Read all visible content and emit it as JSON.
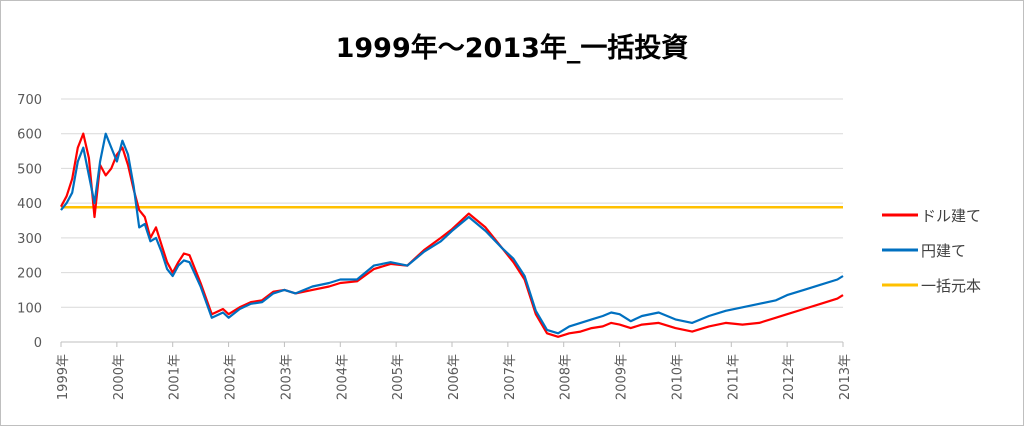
{
  "chart_data": {
    "type": "line",
    "title": "1999年～2013年_一括投資",
    "ylim": [
      0,
      700
    ],
    "yticks": [
      0,
      100,
      200,
      300,
      400,
      500,
      600,
      700
    ],
    "xlim": [
      1999,
      2013
    ],
    "xticks": [
      {
        "x": 1999,
        "label": "1999年"
      },
      {
        "x": 2000,
        "label": "2000年"
      },
      {
        "x": 2001,
        "label": "2001年"
      },
      {
        "x": 2002,
        "label": "2002年"
      },
      {
        "x": 2003,
        "label": "2003年"
      },
      {
        "x": 2004,
        "label": "2004年"
      },
      {
        "x": 2005,
        "label": "2005年"
      },
      {
        "x": 2006,
        "label": "2006年"
      },
      {
        "x": 2007,
        "label": "2007年"
      },
      {
        "x": 2008,
        "label": "2008年"
      },
      {
        "x": 2009,
        "label": "2009年"
      },
      {
        "x": 2010,
        "label": "2010年"
      },
      {
        "x": 2011,
        "label": "2011年"
      },
      {
        "x": 2012,
        "label": "2012年"
      },
      {
        "x": 2013,
        "label": "2013年"
      }
    ],
    "grid": true,
    "legend_position": "right",
    "series": [
      {
        "name": "ドル建て",
        "color": "#ff0000",
        "x": [
          1999.0,
          1999.1,
          1999.2,
          1999.3,
          1999.4,
          1999.5,
          1999.6,
          1999.7,
          1999.8,
          1999.9,
          2000.0,
          2000.1,
          2000.2,
          2000.3,
          2000.4,
          2000.5,
          2000.6,
          2000.7,
          2000.8,
          2000.9,
          2001.0,
          2001.1,
          2001.2,
          2001.3,
          2001.5,
          2001.7,
          2001.9,
          2002.0,
          2002.2,
          2002.4,
          2002.6,
          2002.8,
          2003.0,
          2003.2,
          2003.5,
          2003.8,
          2004.0,
          2004.3,
          2004.6,
          2004.9,
          2005.2,
          2005.5,
          2005.8,
          2006.0,
          2006.3,
          2006.6,
          2006.9,
          2007.1,
          2007.3,
          2007.5,
          2007.7,
          2007.9,
          2008.1,
          2008.3,
          2008.5,
          2008.7,
          2008.85,
          2009.0,
          2009.2,
          2009.4,
          2009.7,
          2010.0,
          2010.3,
          2010.6,
          2010.9,
          2011.2,
          2011.5,
          2011.8,
          2012.0,
          2012.3,
          2012.6,
          2012.9,
          2013.0
        ],
        "y": [
          390,
          420,
          470,
          560,
          600,
          530,
          360,
          510,
          480,
          500,
          540,
          560,
          510,
          440,
          380,
          360,
          300,
          330,
          280,
          230,
          200,
          230,
          255,
          250,
          170,
          80,
          95,
          80,
          100,
          115,
          120,
          145,
          150,
          140,
          150,
          160,
          170,
          175,
          210,
          225,
          220,
          265,
          300,
          325,
          370,
          330,
          270,
          230,
          180,
          80,
          25,
          15,
          25,
          30,
          40,
          45,
          55,
          50,
          40,
          50,
          55,
          40,
          30,
          45,
          55,
          50,
          55,
          70,
          80,
          95,
          110,
          125,
          135
        ]
      },
      {
        "name": "円建て",
        "color": "#0070c0",
        "x": [
          1999.0,
          1999.1,
          1999.2,
          1999.3,
          1999.4,
          1999.5,
          1999.6,
          1999.7,
          1999.8,
          1999.9,
          2000.0,
          2000.1,
          2000.2,
          2000.3,
          2000.4,
          2000.5,
          2000.6,
          2000.7,
          2000.8,
          2000.9,
          2001.0,
          2001.1,
          2001.2,
          2001.3,
          2001.5,
          2001.7,
          2001.9,
          2002.0,
          2002.2,
          2002.4,
          2002.6,
          2002.8,
          2003.0,
          2003.2,
          2003.5,
          2003.8,
          2004.0,
          2004.3,
          2004.6,
          2004.9,
          2005.2,
          2005.5,
          2005.8,
          2006.0,
          2006.3,
          2006.6,
          2006.9,
          2007.1,
          2007.3,
          2007.5,
          2007.7,
          2007.9,
          2008.1,
          2008.3,
          2008.5,
          2008.7,
          2008.85,
          2009.0,
          2009.2,
          2009.4,
          2009.7,
          2010.0,
          2010.3,
          2010.6,
          2010.9,
          2011.2,
          2011.5,
          2011.8,
          2012.0,
          2012.3,
          2012.6,
          2012.9,
          2013.0
        ],
        "y": [
          380,
          400,
          430,
          520,
          560,
          480,
          400,
          520,
          600,
          560,
          520,
          580,
          540,
          450,
          330,
          340,
          290,
          300,
          260,
          210,
          190,
          220,
          235,
          230,
          160,
          70,
          85,
          70,
          95,
          110,
          115,
          140,
          150,
          140,
          160,
          170,
          180,
          180,
          220,
          230,
          220,
          260,
          290,
          320,
          360,
          320,
          270,
          240,
          190,
          90,
          35,
          25,
          45,
          55,
          65,
          75,
          85,
          80,
          60,
          75,
          85,
          65,
          55,
          75,
          90,
          100,
          110,
          120,
          135,
          150,
          165,
          180,
          190
        ]
      },
      {
        "name": "一括元本",
        "color": "#ffc000",
        "x": [
          1999,
          2013
        ],
        "y": [
          388,
          388
        ]
      }
    ]
  }
}
